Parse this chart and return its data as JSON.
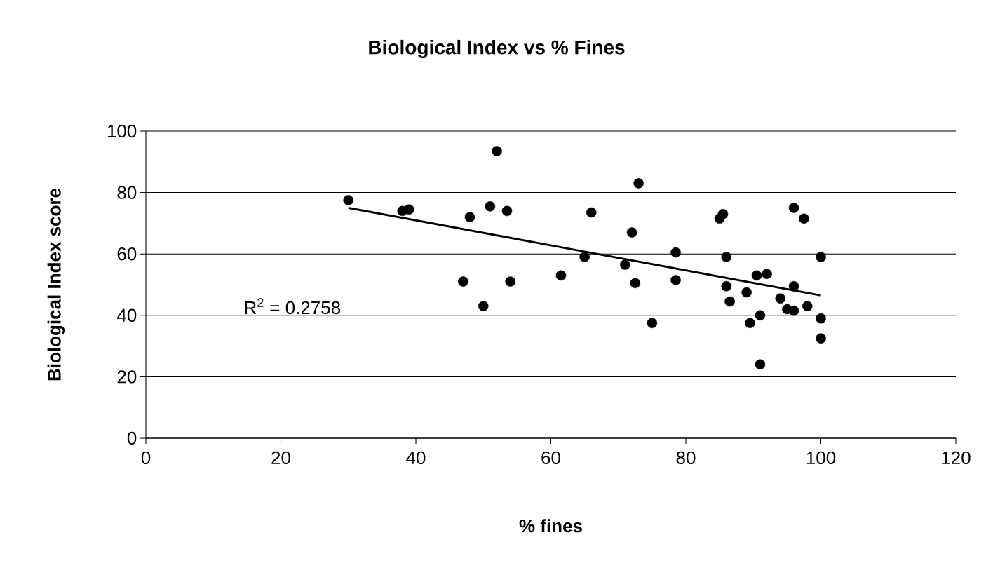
{
  "chart_data": {
    "type": "scatter",
    "title": "Biological Index vs % Fines",
    "xlabel": "% fines",
    "ylabel": "Biological Index score",
    "annotations": [
      "R$^{2}$ = 0.2758"
    ],
    "xlim": [
      0,
      120
    ],
    "xticks": [
      0,
      20,
      40,
      60,
      80,
      100,
      120
    ],
    "ylim": [
      0,
      100
    ],
    "yticks": [
      0,
      20,
      40,
      60,
      80,
      100
    ],
    "grid": "y",
    "series": [
      {
        "marker": "circle",
        "color": "#000000",
        "x": [
          30,
          38,
          39,
          47,
          48,
          50,
          51,
          52,
          53.5,
          54,
          61.5,
          65,
          66,
          71,
          72,
          72.5,
          73,
          75,
          78.5,
          78.5,
          85,
          85.5,
          86,
          86,
          86.5,
          89,
          89.5,
          90.5,
          91,
          91,
          92,
          94,
          95,
          96,
          96,
          96,
          97.5,
          98,
          100,
          100,
          100
        ],
        "values": [
          77.5,
          74,
          74.5,
          51,
          72,
          43,
          75.5,
          93.5,
          74,
          51,
          53,
          59,
          73.5,
          56.5,
          67,
          50.5,
          83,
          37.5,
          60.5,
          51.5,
          71.5,
          73,
          59,
          49.5,
          44.5,
          47.5,
          37.5,
          53,
          40,
          24,
          53.5,
          45.5,
          42,
          75,
          49.5,
          41.5,
          71.5,
          43,
          59,
          39,
          32.5
        ]
      },
      {
        "type": "line",
        "marker": "none",
        "color": "#000000",
        "x": [
          30,
          100
        ],
        "values": [
          75,
          46.5
        ]
      }
    ]
  }
}
